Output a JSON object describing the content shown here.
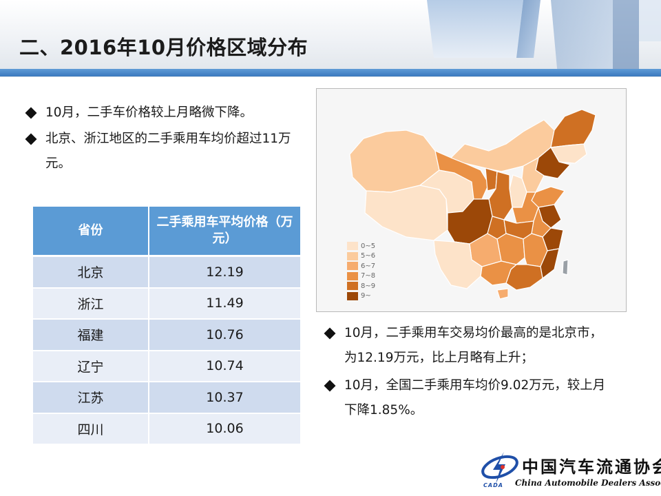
{
  "header": {
    "title": "二、2016年10月价格区域分布"
  },
  "bullets_left": [
    "10月，二手车价格较上月略微下降。",
    "北京、浙江地区的二手乘用车均价超过11万元。"
  ],
  "table": {
    "headers": [
      "省份",
      "二手乘用车平均价格（万元）"
    ],
    "rows": [
      {
        "province": "北京",
        "price": "12.19"
      },
      {
        "province": "浙江",
        "price": "11.49"
      },
      {
        "province": "福建",
        "price": "10.76"
      },
      {
        "province": "辽宁",
        "price": "10.74"
      },
      {
        "province": "江苏",
        "price": "10.37"
      },
      {
        "province": "四川",
        "price": "10.06"
      }
    ]
  },
  "map": {
    "legend": [
      {
        "label": "0~5",
        "color": "#fde3c9"
      },
      {
        "label": "5~6",
        "color": "#fbcb9d"
      },
      {
        "label": "6~7",
        "color": "#f6ac6e"
      },
      {
        "label": "7~8",
        "color": "#ea9145"
      },
      {
        "label": "8~9",
        "color": "#cf7023"
      },
      {
        "label": "9~",
        "color": "#9c4808"
      }
    ],
    "regions": [
      {
        "region": "xinjiang",
        "bin": "5~6"
      },
      {
        "region": "xizang",
        "bin": "0~5"
      },
      {
        "region": "qinghai",
        "bin": "0~5"
      },
      {
        "region": "gansu",
        "bin": "7~8"
      },
      {
        "region": "neimenggu",
        "bin": "5~6"
      },
      {
        "region": "heilongjiang",
        "bin": "8~9"
      },
      {
        "region": "jilin",
        "bin": "0~5"
      },
      {
        "region": "liaoning",
        "bin": "9~"
      },
      {
        "region": "hebei",
        "bin": "5~6"
      },
      {
        "region": "shanxi",
        "bin": "0~5"
      },
      {
        "region": "shaanxi",
        "bin": "8~9"
      },
      {
        "region": "ningxia",
        "bin": "8~9"
      },
      {
        "region": "henan",
        "bin": "7~8"
      },
      {
        "region": "shandong",
        "bin": "7~8"
      },
      {
        "region": "jiangsu",
        "bin": "9~"
      },
      {
        "region": "zhejiang",
        "bin": "9~"
      },
      {
        "region": "anhui",
        "bin": "7~8"
      },
      {
        "region": "hubei",
        "bin": "8~9"
      },
      {
        "region": "sichuan",
        "bin": "9~"
      },
      {
        "region": "chongqing",
        "bin": "8~9"
      },
      {
        "region": "hunan",
        "bin": "7~8"
      },
      {
        "region": "jiangxi",
        "bin": "7~8"
      },
      {
        "region": "fujian",
        "bin": "9~"
      },
      {
        "region": "guangdong",
        "bin": "8~9"
      },
      {
        "region": "guangxi",
        "bin": "7~8"
      },
      {
        "region": "guizhou",
        "bin": "6~7"
      },
      {
        "region": "yunnan",
        "bin": "0~5"
      },
      {
        "region": "hainan",
        "bin": "6~7"
      },
      {
        "region": "taiwan",
        "bin": "none"
      }
    ]
  },
  "bullets_right": [
    "10月，二手乘用车交易均价最高的是北京市，为12.19万元，比上月略有上升；",
    "10月，全国二手乘用车均价9.02万元，较上月下降1.85%。"
  ],
  "logo": {
    "name_cn": "中国汽车流通协会",
    "name_en": "China Automobile Dealers Association",
    "abbr": "CADA"
  }
}
